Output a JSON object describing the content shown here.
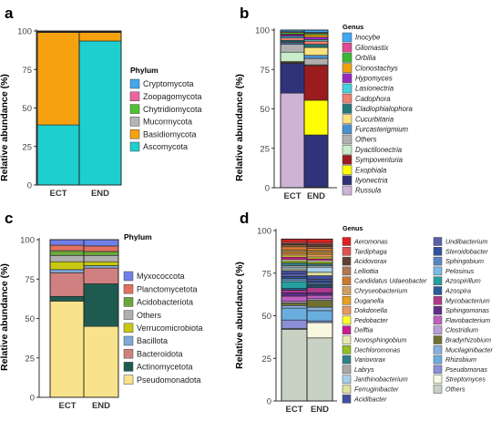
{
  "chart_data": [
    {
      "panel": "a",
      "type": "bar",
      "stacked": true,
      "categories": [
        "ECT",
        "END"
      ],
      "ylabel": "Relative abundance (%)",
      "ylim": [
        0,
        100
      ],
      "yticks": [
        0,
        25,
        50,
        75,
        100
      ],
      "legend_title": "Phylum",
      "legend_italic": false,
      "legend_placement": "right",
      "series": [
        {
          "name": "Ascomycota",
          "color": "#1ecfd0",
          "values": [
            39,
            93.5
          ]
        },
        {
          "name": "Basidiomycota",
          "color": "#f5a20e",
          "values": [
            60,
            5.5
          ]
        },
        {
          "name": "Mucormycota",
          "color": "#b5b5b5",
          "values": [
            0.3,
            0.3
          ]
        },
        {
          "name": "Chytridiomycota",
          "color": "#52c234",
          "values": [
            0.2,
            0.2
          ]
        },
        {
          "name": "Zoopagomycota",
          "color": "#ec63a0",
          "values": [
            0.2,
            0.2
          ]
        },
        {
          "name": "Cryptomycota",
          "color": "#44a8ec",
          "values": [
            0.3,
            0.3
          ]
        }
      ]
    },
    {
      "panel": "b",
      "type": "bar",
      "stacked": true,
      "categories": [
        "ECT",
        "END"
      ],
      "ylabel": "Relative abundance (%)",
      "ylim": [
        0,
        100
      ],
      "yticks": [
        0,
        25,
        50,
        75,
        100
      ],
      "legend_title": "Genus",
      "legend_italic": true,
      "legend_placement": "right",
      "series": [
        {
          "name": "Russula",
          "color": "#cdb3d6",
          "values": [
            60,
            0.5
          ]
        },
        {
          "name": "Ilyonectria",
          "color": "#30337a",
          "values": [
            19,
            33
          ]
        },
        {
          "name": "Exophiala",
          "color": "#ffff00",
          "values": [
            0.5,
            22
          ]
        },
        {
          "name": "Sympoventuria",
          "color": "#9b1c1c",
          "values": [
            0.5,
            22
          ]
        },
        {
          "name": "Dyactilonectria",
          "color": "#c9ecc9",
          "values": [
            6,
            0.5
          ]
        },
        {
          "name": "Others",
          "color": "#b0b0b0",
          "values": [
            5,
            4
          ]
        },
        {
          "name": "Furcasterigmium",
          "color": "#4a90d0",
          "values": [
            1,
            2
          ]
        },
        {
          "name": "Cucurbitaria",
          "color": "#fbe27e",
          "values": [
            0.5,
            5
          ]
        },
        {
          "name": "Cladiophialophora",
          "color": "#22787b",
          "values": [
            1,
            2
          ]
        },
        {
          "name": "Cadophora",
          "color": "#f08070",
          "values": [
            1.5,
            2
          ]
        },
        {
          "name": "Lasionectria",
          "color": "#45d0e0",
          "values": [
            1,
            1
          ]
        },
        {
          "name": "Hypomyces",
          "color": "#9a28c0",
          "values": [
            1,
            1.5
          ]
        },
        {
          "name": "Clonostachys",
          "color": "#f0a010",
          "values": [
            0.5,
            1.5
          ]
        },
        {
          "name": "Orbilia",
          "color": "#3ab830",
          "values": [
            1,
            1
          ]
        },
        {
          "name": "Gliomastix",
          "color": "#e04a90",
          "values": [
            0.5,
            0.5
          ]
        },
        {
          "name": "Inocybe",
          "color": "#3fa9f5",
          "values": [
            1,
            1.5
          ]
        }
      ]
    },
    {
      "panel": "c",
      "type": "bar",
      "stacked": true,
      "categories": [
        "ECT",
        "END"
      ],
      "ylabel": "Relative abundance (%)",
      "ylim": [
        0,
        100
      ],
      "yticks": [
        0,
        25,
        50,
        75,
        100
      ],
      "legend_title": "Phylum",
      "legend_italic": false,
      "legend_placement": "right",
      "series": [
        {
          "name": "Pseudomonadota",
          "color": "#f8e38c",
          "values": [
            61,
            45
          ]
        },
        {
          "name": "Actinomycetota",
          "color": "#1e5a50",
          "values": [
            3,
            27
          ]
        },
        {
          "name": "Bacteroidota",
          "color": "#d08080",
          "values": [
            15,
            10
          ]
        },
        {
          "name": "Bacillota",
          "color": "#7fa9d8",
          "values": [
            2,
            1.5
          ]
        },
        {
          "name": "Verrucomicrobiota",
          "color": "#c8c814",
          "values": [
            5,
            2.5
          ]
        },
        {
          "name": "Others",
          "color": "#b0b0b0",
          "values": [
            4,
            4
          ]
        },
        {
          "name": "Acidobacteriota",
          "color": "#6aa63c",
          "values": [
            3,
            2.5
          ]
        },
        {
          "name": "Planctomycetota",
          "color": "#e07060",
          "values": [
            3.5,
            3.5
          ]
        },
        {
          "name": "Myxococcota",
          "color": "#7080e8",
          "values": [
            3.5,
            4
          ]
        }
      ]
    },
    {
      "panel": "d",
      "type": "bar",
      "stacked": true,
      "categories": [
        "ECT",
        "END"
      ],
      "ylabel": "Relative abundance (%)",
      "ylim": [
        0,
        100
      ],
      "yticks": [
        0,
        25,
        50,
        75,
        100
      ],
      "legend_title": "Genus",
      "legend_italic": true,
      "legend_placement": "right",
      "series": [
        {
          "name": "Others",
          "color": "#c8d2c4",
          "values": [
            42,
            37
          ]
        },
        {
          "name": "Streptomyces",
          "color": "#f8f8e0",
          "values": [
            0.5,
            9
          ]
        },
        {
          "name": "Pseudomonas",
          "color": "#8a8fd6",
          "values": [
            5,
            1
          ]
        },
        {
          "name": "Rhizobium",
          "color": "#6aaee0",
          "values": [
            7,
            6
          ]
        },
        {
          "name": "Mucilaginibacter",
          "color": "#8ab0e0",
          "values": [
            1.5,
            2
          ]
        },
        {
          "name": "Bradyrhizobium",
          "color": "#707030",
          "values": [
            1.5,
            4
          ]
        },
        {
          "name": "Clostridium",
          "color": "#b8a0d8",
          "values": [
            1,
            1
          ]
        },
        {
          "name": "Flavobacterium",
          "color": "#c060c0",
          "values": [
            3,
            2
          ]
        },
        {
          "name": "Sphingomonas",
          "color": "#5e2e8a",
          "values": [
            2,
            1.5
          ]
        },
        {
          "name": "Mycobacterium",
          "color": "#b03a8a",
          "values": [
            1.5,
            3
          ]
        },
        {
          "name": "Azospira",
          "color": "#2a5c9a",
          "values": [
            1,
            1
          ]
        },
        {
          "name": "Azospirillum",
          "color": "#26a0a0",
          "values": [
            4,
            0.5
          ]
        },
        {
          "name": "Pelosinus",
          "color": "#7abce8",
          "values": [
            1,
            0.5
          ]
        },
        {
          "name": "Sphingobium",
          "color": "#5a86c8",
          "values": [
            1,
            1
          ]
        },
        {
          "name": "Steroidobacter",
          "color": "#3050a0",
          "values": [
            1,
            1
          ]
        },
        {
          "name": "Undibacterium",
          "color": "#5860a8",
          "values": [
            1.5,
            1
          ]
        },
        {
          "name": "Acidibacter",
          "color": "#4050a0",
          "values": [
            2,
            2
          ]
        },
        {
          "name": "Ferruginibacter",
          "color": "#e0e0a0",
          "values": [
            1,
            2
          ]
        },
        {
          "name": "Janthinobacterium",
          "color": "#a8d0e8",
          "values": [
            1,
            3
          ]
        },
        {
          "name": "Labrys",
          "color": "#a8a8a8",
          "values": [
            1,
            1
          ]
        },
        {
          "name": "Variovorax",
          "color": "#30808a",
          "values": [
            1.5,
            1
          ]
        },
        {
          "name": "Dechloromonas",
          "color": "#90c020",
          "values": [
            1,
            1
          ]
        },
        {
          "name": "Novosphingobium",
          "color": "#e8e8b0",
          "values": [
            1,
            1
          ]
        },
        {
          "name": "Delftia",
          "color": "#c81c90",
          "values": [
            1.5,
            1
          ]
        },
        {
          "name": "Pedobacter",
          "color": "#ffff30",
          "values": [
            1,
            1
          ]
        },
        {
          "name": "Dokdonella",
          "color": "#e89860",
          "values": [
            1,
            1.5
          ]
        },
        {
          "name": "Duganella",
          "color": "#e8a020",
          "values": [
            1,
            1
          ]
        },
        {
          "name": "Chryseobacterium",
          "color": "#d0a060",
          "values": [
            1,
            1
          ]
        },
        {
          "name": "Candidatus Udaeobacter",
          "color": "#d07830",
          "values": [
            2,
            1.5
          ]
        },
        {
          "name": "Lelliottia",
          "color": "#b07850",
          "values": [
            1,
            1
          ]
        },
        {
          "name": "Acidovorax",
          "color": "#604030",
          "values": [
            1,
            1.5
          ]
        },
        {
          "name": "Tardiphaga",
          "color": "#e05050",
          "values": [
            1,
            1
          ]
        },
        {
          "name": "Aeromonas",
          "color": "#e02020",
          "values": [
            1.5,
            2
          ]
        }
      ]
    }
  ]
}
